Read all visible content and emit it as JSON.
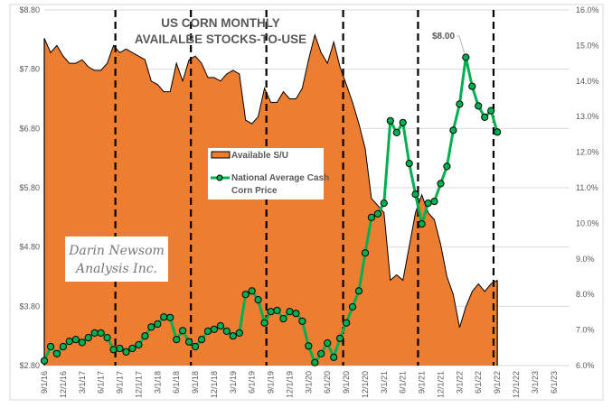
{
  "chart_data": {
    "type": "area+line",
    "title_lines": [
      "US CORN MONTHLY",
      "AVAILALBE STOCKS-TO-USE"
    ],
    "x_tick_labels": [
      "9/1/16",
      "12/1/16",
      "3/1/17",
      "6/1/17",
      "9/1/17",
      "12/1/17",
      "3/1/18",
      "6/1/18",
      "9/1/18",
      "12/1/18",
      "3/1/19",
      "6/1/19",
      "9/1/19",
      "12/1/19",
      "3/1/20",
      "6/1/20",
      "9/1/20",
      "12/1/20",
      "3/1/21",
      "6/1/21",
      "9/1/21",
      "12/1/21",
      "3/1/22",
      "6/1/22",
      "9/1/22",
      "12/1/22",
      "3/1/23",
      "6/1/23"
    ],
    "x_start": "9/1/16",
    "x_end": "6/1/23",
    "data_frequency": "monthly",
    "left_axis": {
      "min": 2.8,
      "max": 8.8,
      "step": 1.0,
      "tick_labels": [
        "$2.80",
        "$3.80",
        "$4.80",
        "$5.80",
        "$6.80",
        "$7.80",
        "$8.80"
      ]
    },
    "right_axis": {
      "min": 6.0,
      "max": 16.0,
      "step": 1.0,
      "tick_labels": [
        "6.0%",
        "7.0%",
        "8.0%",
        "9.0%",
        "10.0%",
        "11.0%",
        "12.0%",
        "13.0%",
        "14.0%",
        "15.0%",
        "16.0%"
      ]
    },
    "grid": "horizontal, left-axis ticks",
    "legend_placement": "center-left",
    "series": [
      {
        "name": "Available S/U",
        "type": "area",
        "axis": "right",
        "color": "#ED7D31",
        "values": [
          15.2,
          14.8,
          15.0,
          14.7,
          14.5,
          14.5,
          14.6,
          14.4,
          14.3,
          14.3,
          14.5,
          15.0,
          14.8,
          14.9,
          14.8,
          14.7,
          14.6,
          14.0,
          13.9,
          13.7,
          13.7,
          14.5,
          14.0,
          14.6,
          14.7,
          14.5,
          14.1,
          14.1,
          14.0,
          14.2,
          14.3,
          14.2,
          12.9,
          12.8,
          13.0,
          13.8,
          13.4,
          13.4,
          13.7,
          13.5,
          13.5,
          13.8,
          14.6,
          15.3,
          14.8,
          14.5,
          15.1,
          14.4,
          13.9,
          13.4,
          12.8,
          12.1,
          10.7,
          10.5,
          10.3,
          8.4,
          8.55,
          8.4,
          9.35,
          10.3,
          10.8,
          10.3,
          10.1,
          9.4,
          8.5,
          8.0,
          7.07,
          7.65,
          8.08,
          8.3,
          8.08,
          8.3,
          8.4
        ]
      },
      {
        "name": "National Average Cash Corn Price",
        "type": "line",
        "axis": "left",
        "color": "#00B050",
        "values": [
          2.88,
          3.12,
          3.0,
          3.12,
          3.21,
          3.24,
          3.19,
          3.27,
          3.35,
          3.35,
          3.27,
          3.07,
          3.09,
          3.03,
          3.09,
          3.15,
          3.3,
          3.45,
          3.5,
          3.62,
          3.61,
          3.24,
          3.39,
          3.2,
          3.12,
          3.24,
          3.38,
          3.41,
          3.47,
          3.38,
          3.3,
          3.35,
          4.0,
          4.06,
          3.91,
          3.52,
          3.71,
          3.73,
          3.59,
          3.71,
          3.68,
          3.55,
          3.13,
          2.85,
          3.0,
          3.18,
          2.94,
          3.26,
          3.52,
          3.79,
          4.06,
          4.7,
          5.3,
          5.36,
          5.54,
          6.93,
          6.73,
          6.9,
          6.21,
          5.69,
          5.19,
          5.54,
          5.57,
          5.87,
          6.16,
          6.77,
          7.21,
          8.0,
          7.51,
          7.18,
          6.99,
          7.1,
          6.74
        ]
      }
    ],
    "data_labels": [
      {
        "series": "National Average Cash Corn Price",
        "text": "$8.00"
      }
    ],
    "vertical_dashed_markers": "mid-August each year 2017-2022"
  },
  "legend": {
    "area_label": "Available S/U",
    "line_label_1": "National Average Cash",
    "line_label_2": "Corn Price"
  },
  "watermark": {
    "line1": "Darin Newsom",
    "line2": "Analysis Inc."
  }
}
